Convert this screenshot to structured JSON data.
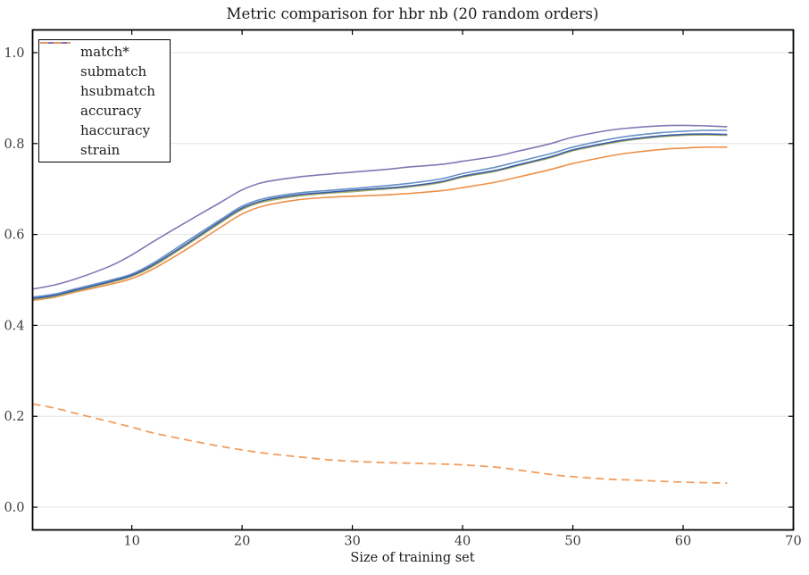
{
  "figure": {
    "title": "Metric comparison for hbr nb (20 random orders)",
    "xlabel": "Size of training set",
    "background": "#ffffff",
    "frame_color": "#000000",
    "grid_color": "#e3e3e3",
    "tick_color": "#000000",
    "tick_label_color": "#3c3c3c"
  },
  "chart_data": {
    "type": "line",
    "title": "Metric comparison for hbr nb (20 random orders)",
    "xlabel": "Size of training set",
    "ylabel": "",
    "xlim": [
      1,
      70
    ],
    "ylim": [
      -0.05,
      1.05
    ],
    "xticks": [
      10,
      20,
      30,
      40,
      50,
      60,
      70
    ],
    "xtick_labels": [
      "10",
      "20",
      "30",
      "40",
      "50",
      "60",
      "70"
    ],
    "yticks": [
      0.0,
      0.2,
      0.4,
      0.6,
      0.8,
      1.0
    ],
    "ytick_labels": [
      "0.0",
      "0.2",
      "0.4",
      "0.6",
      "0.8",
      "1.0"
    ],
    "grid": "horizontal",
    "legend_position": "upper-left",
    "x": [
      1,
      3,
      5,
      8,
      10,
      12,
      15,
      18,
      20,
      22,
      25,
      28,
      30,
      33,
      35,
      38,
      40,
      43,
      45,
      48,
      50,
      53,
      55,
      58,
      60,
      62,
      64
    ],
    "series": [
      {
        "name": "match*",
        "color": "#ED9048",
        "style": "solid",
        "values": [
          0.455,
          0.462,
          0.474,
          0.49,
          0.503,
          0.525,
          0.568,
          0.615,
          0.645,
          0.663,
          0.676,
          0.682,
          0.684,
          0.687,
          0.69,
          0.696,
          0.703,
          0.715,
          0.726,
          0.743,
          0.756,
          0.771,
          0.779,
          0.787,
          0.79,
          0.792,
          0.792
        ]
      },
      {
        "name": "submatch",
        "color": "#A6AE5F",
        "style": "solid",
        "values": [
          0.457,
          0.464,
          0.476,
          0.494,
          0.508,
          0.531,
          0.577,
          0.625,
          0.655,
          0.672,
          0.684,
          0.691,
          0.694,
          0.7,
          0.704,
          0.714,
          0.726,
          0.739,
          0.751,
          0.769,
          0.784,
          0.799,
          0.807,
          0.815,
          0.818,
          0.819,
          0.818
        ]
      },
      {
        "name": "hsubmatch",
        "color": "#6790C8",
        "style": "solid",
        "values": [
          0.462,
          0.469,
          0.481,
          0.499,
          0.513,
          0.538,
          0.585,
          0.632,
          0.662,
          0.679,
          0.691,
          0.697,
          0.701,
          0.707,
          0.712,
          0.722,
          0.734,
          0.748,
          0.76,
          0.778,
          0.792,
          0.808,
          0.816,
          0.824,
          0.827,
          0.829,
          0.829
        ]
      },
      {
        "name": "accuracy",
        "color": "#3A5CA8",
        "style": "solid",
        "values": [
          0.459,
          0.466,
          0.478,
          0.496,
          0.51,
          0.534,
          0.58,
          0.628,
          0.658,
          0.675,
          0.687,
          0.693,
          0.697,
          0.702,
          0.706,
          0.716,
          0.728,
          0.741,
          0.753,
          0.771,
          0.786,
          0.801,
          0.809,
          0.817,
          0.82,
          0.821,
          0.82
        ]
      },
      {
        "name": "haccuracy",
        "color": "#8476B4",
        "style": "solid",
        "values": [
          0.48,
          0.489,
          0.503,
          0.53,
          0.555,
          0.585,
          0.628,
          0.67,
          0.698,
          0.715,
          0.726,
          0.733,
          0.737,
          0.743,
          0.748,
          0.754,
          0.761,
          0.772,
          0.783,
          0.8,
          0.814,
          0.828,
          0.834,
          0.839,
          0.84,
          0.839,
          0.837
        ]
      },
      {
        "name": "strain",
        "color": "#F19E60",
        "style": "dashed",
        "values": [
          0.227,
          0.218,
          0.206,
          0.188,
          0.176,
          0.163,
          0.148,
          0.134,
          0.126,
          0.119,
          0.111,
          0.104,
          0.101,
          0.098,
          0.097,
          0.095,
          0.093,
          0.088,
          0.082,
          0.072,
          0.067,
          0.062,
          0.06,
          0.057,
          0.055,
          0.054,
          0.053
        ]
      }
    ]
  }
}
